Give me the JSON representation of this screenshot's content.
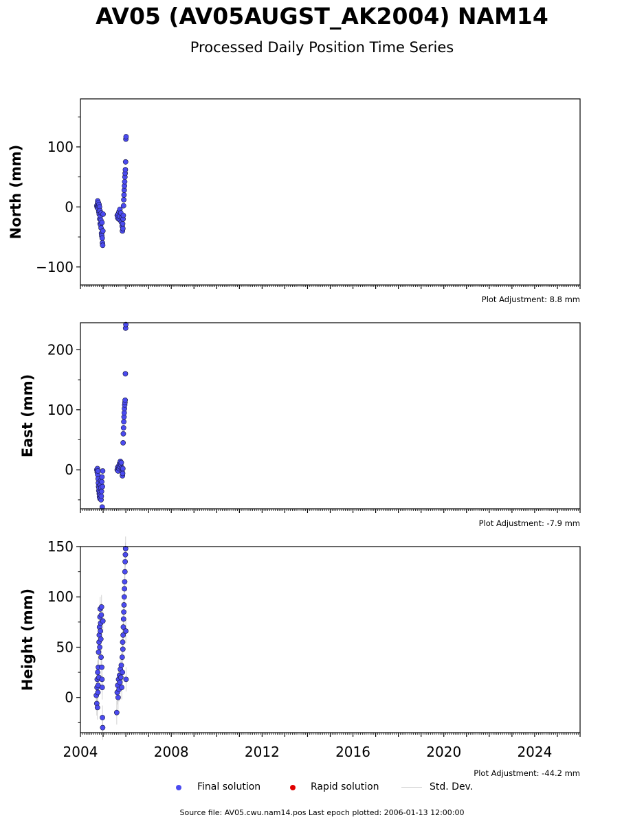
{
  "title": "AV05 (AV05AUGST_AK2004) NAM14",
  "subtitle": "Processed Daily Position Time Series",
  "colors": {
    "final": "#4b4bf0",
    "final_edge": "#1a1a3a",
    "rapid": "#e00000",
    "stddev": "#c8c8c8"
  },
  "legend": {
    "final_label": "Final solution",
    "rapid_label": "Rapid solution",
    "std_label": "Std. Dev."
  },
  "footer": "Source file: AV05.cwu.nam14.pos  Last epoch plotted: 2006-01-13 12:00:00",
  "chart_data": [
    {
      "type": "scatter",
      "ylabel": "North (mm)",
      "adjustment": "Plot Adjustment: 8.8 mm",
      "ylim": [
        -130,
        180
      ],
      "yticks": [
        -100,
        0,
        100
      ],
      "ytick_labels": [
        "−100",
        "0",
        "100"
      ],
      "yminor_step": 50,
      "xlim": [
        2004.0,
        2026.0
      ],
      "series": [
        {
          "points": [
            [
              2004.72,
              2
            ],
            [
              2004.74,
              -1
            ],
            [
              2004.75,
              5
            ],
            [
              2004.76,
              10
            ],
            [
              2004.77,
              0
            ],
            [
              2004.78,
              -3
            ],
            [
              2004.79,
              7
            ],
            [
              2004.8,
              2
            ],
            [
              2004.81,
              -8
            ],
            [
              2004.82,
              4
            ],
            [
              2004.83,
              -12
            ],
            [
              2004.84,
              0
            ],
            [
              2004.85,
              -20
            ],
            [
              2004.86,
              -6
            ],
            [
              2004.87,
              -28
            ],
            [
              2004.88,
              -15
            ],
            [
              2004.89,
              -30
            ],
            [
              2004.9,
              -22
            ],
            [
              2004.91,
              -35
            ],
            [
              2004.92,
              -10
            ],
            [
              2004.93,
              -44
            ],
            [
              2004.94,
              -48
            ],
            [
              2004.95,
              -26
            ],
            [
              2004.96,
              -52
            ],
            [
              2004.97,
              -60
            ],
            [
              2004.98,
              -64
            ],
            [
              2004.99,
              -40
            ],
            [
              2005.0,
              -12
            ],
            [
              2005.62,
              -14
            ],
            [
              2005.64,
              -18
            ],
            [
              2005.66,
              -12
            ],
            [
              2005.68,
              -20
            ],
            [
              2005.7,
              -8
            ],
            [
              2005.72,
              -16
            ],
            [
              2005.74,
              -4
            ],
            [
              2005.76,
              -22
            ],
            [
              2005.78,
              -10
            ],
            [
              2005.8,
              -25
            ],
            [
              2005.82,
              -18
            ],
            [
              2005.84,
              -32
            ],
            [
              2005.85,
              -40
            ],
            [
              2005.86,
              -28
            ],
            [
              2005.87,
              -36
            ],
            [
              2005.88,
              -20
            ],
            [
              2005.89,
              -14
            ],
            [
              2005.9,
              2
            ],
            [
              2005.91,
              12
            ],
            [
              2005.92,
              20
            ],
            [
              2005.93,
              28
            ],
            [
              2005.94,
              35
            ],
            [
              2005.95,
              42
            ],
            [
              2005.96,
              50
            ],
            [
              2005.97,
              56
            ],
            [
              2005.98,
              62
            ],
            [
              2005.99,
              75
            ],
            [
              2006.0,
              113
            ],
            [
              2006.01,
              117
            ]
          ]
        }
      ]
    },
    {
      "type": "scatter",
      "ylabel": "East (mm)",
      "adjustment": "Plot Adjustment: -7.9 mm",
      "ylim": [
        -65,
        245
      ],
      "yticks": [
        0,
        100,
        200
      ],
      "ytick_labels": [
        "0",
        "100",
        "200"
      ],
      "yminor_step": 50,
      "xlim": [
        2004.0,
        2026.0
      ],
      "series": [
        {
          "points": [
            [
              2004.72,
              0
            ],
            [
              2004.74,
              -4
            ],
            [
              2004.75,
              2
            ],
            [
              2004.76,
              -8
            ],
            [
              2004.77,
              -2
            ],
            [
              2004.78,
              -15
            ],
            [
              2004.79,
              -22
            ],
            [
              2004.8,
              -28
            ],
            [
              2004.81,
              -35
            ],
            [
              2004.82,
              -30
            ],
            [
              2004.83,
              -40
            ],
            [
              2004.84,
              -45
            ],
            [
              2004.85,
              -38
            ],
            [
              2004.86,
              -48
            ],
            [
              2004.87,
              -42
            ],
            [
              2004.88,
              -25
            ],
            [
              2004.89,
              -18
            ],
            [
              2004.9,
              -30
            ],
            [
              2004.91,
              -50
            ],
            [
              2004.92,
              -44
            ],
            [
              2004.93,
              -36
            ],
            [
              2004.94,
              -20
            ],
            [
              2004.95,
              -12
            ],
            [
              2004.96,
              -62
            ],
            [
              2004.97,
              -28
            ],
            [
              2004.98,
              -2
            ],
            [
              2005.62,
              0
            ],
            [
              2005.64,
              4
            ],
            [
              2005.66,
              -2
            ],
            [
              2005.68,
              6
            ],
            [
              2005.7,
              2
            ],
            [
              2005.72,
              10
            ],
            [
              2005.74,
              5
            ],
            [
              2005.76,
              14
            ],
            [
              2005.78,
              8
            ],
            [
              2005.8,
              12
            ],
            [
              2005.82,
              3
            ],
            [
              2005.84,
              -4
            ],
            [
              2005.85,
              -10
            ],
            [
              2005.86,
              -6
            ],
            [
              2005.87,
              2
            ],
            [
              2005.88,
              45
            ],
            [
              2005.89,
              60
            ],
            [
              2005.9,
              70
            ],
            [
              2005.91,
              80
            ],
            [
              2005.92,
              88
            ],
            [
              2005.93,
              95
            ],
            [
              2005.94,
              102
            ],
            [
              2005.95,
              108
            ],
            [
              2005.96,
              112
            ],
            [
              2005.97,
              116
            ],
            [
              2005.98,
              160
            ],
            [
              2005.99,
              236
            ],
            [
              2006.0,
              242
            ]
          ]
        }
      ]
    },
    {
      "type": "scatter",
      "ylabel": "Height (mm)",
      "adjustment": "Plot Adjustment: -44.2 mm",
      "ylim": [
        -35,
        150
      ],
      "yticks": [
        0,
        50,
        100,
        150
      ],
      "ytick_labels": [
        "0",
        "50",
        "100",
        "150"
      ],
      "yminor_step": 25,
      "xlim": [
        2004.0,
        2026.0
      ],
      "xticks": [
        2004,
        2008,
        2012,
        2016,
        2020,
        2024
      ],
      "xtick_labels": [
        "2004",
        "2008",
        "2012",
        "2016",
        "2020",
        "2024"
      ],
      "series": [
        {
          "std_dev": 12,
          "points": [
            [
              2004.7,
              2
            ],
            [
              2004.72,
              -6
            ],
            [
              2004.73,
              10
            ],
            [
              2004.74,
              18
            ],
            [
              2004.75,
              -10
            ],
            [
              2004.76,
              25
            ],
            [
              2004.77,
              5
            ],
            [
              2004.78,
              12
            ],
            [
              2004.79,
              30
            ],
            [
              2004.8,
              45
            ],
            [
              2004.81,
              20
            ],
            [
              2004.82,
              55
            ],
            [
              2004.83,
              62
            ],
            [
              2004.84,
              70
            ],
            [
              2004.85,
              50
            ],
            [
              2004.86,
              80
            ],
            [
              2004.87,
              88
            ],
            [
              2004.88,
              66
            ],
            [
              2004.89,
              74
            ],
            [
              2004.9,
              58
            ],
            [
              2004.91,
              40
            ],
            [
              2004.92,
              82
            ],
            [
              2004.93,
              90
            ],
            [
              2004.94,
              30
            ],
            [
              2004.95,
              18
            ],
            [
              2004.96,
              10
            ],
            [
              2004.97,
              -20
            ],
            [
              2004.98,
              -30
            ],
            [
              2004.99,
              76
            ],
            [
              2005.6,
              -15
            ],
            [
              2005.62,
              5
            ],
            [
              2005.64,
              12
            ],
            [
              2005.66,
              0
            ],
            [
              2005.68,
              18
            ],
            [
              2005.7,
              8
            ],
            [
              2005.72,
              22
            ],
            [
              2005.74,
              15
            ],
            [
              2005.76,
              28
            ],
            [
              2005.78,
              20
            ],
            [
              2005.8,
              32
            ],
            [
              2005.82,
              10
            ],
            [
              2005.84,
              40
            ],
            [
              2005.85,
              25
            ],
            [
              2005.86,
              55
            ],
            [
              2005.87,
              48
            ],
            [
              2005.88,
              62
            ],
            [
              2005.89,
              70
            ],
            [
              2005.9,
              78
            ],
            [
              2005.91,
              85
            ],
            [
              2005.92,
              92
            ],
            [
              2005.93,
              100
            ],
            [
              2005.94,
              108
            ],
            [
              2005.95,
              115
            ],
            [
              2005.96,
              125
            ],
            [
              2005.97,
              135
            ],
            [
              2005.98,
              142
            ],
            [
              2005.99,
              148
            ],
            [
              2006.0,
              66
            ],
            [
              2006.01,
              18
            ]
          ]
        }
      ]
    }
  ]
}
